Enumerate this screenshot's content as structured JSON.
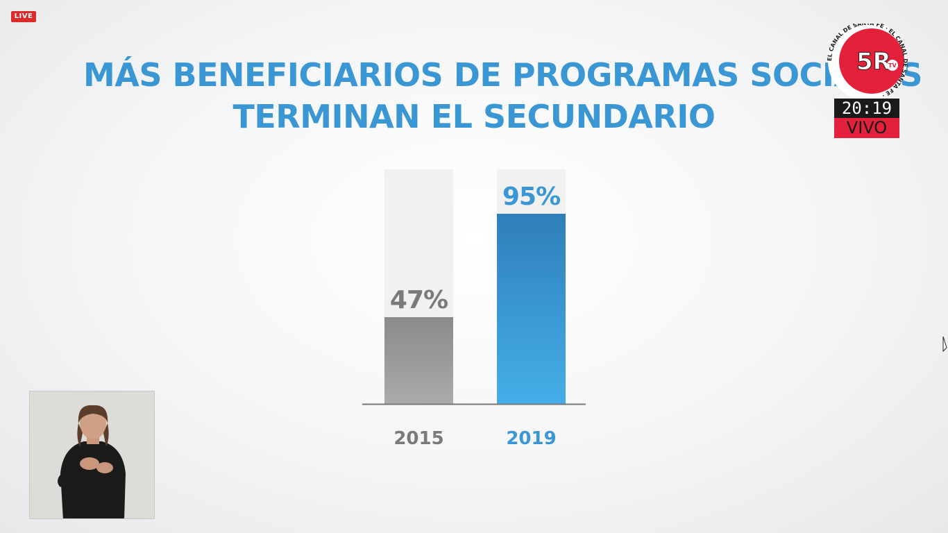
{
  "badge": {
    "live_label": "LIVE"
  },
  "title": {
    "line1": "MÁS BENEFICIARIOS DE PROGRAMAS SOCIALES",
    "line2": "TERMINAN EL SECUNDARIO"
  },
  "logo": {
    "brand": "5R",
    "sub": "TV",
    "ring_text": "EL CANAL DE SANTA FE · EL CANAL DE SANTA FE ·"
  },
  "clock": {
    "time": "20:19",
    "status": "VIVO"
  },
  "chart_data": {
    "type": "bar",
    "categories": [
      "2015",
      "2019"
    ],
    "values": [
      47,
      95
    ],
    "value_labels": [
      "47%",
      "95%"
    ],
    "ylim": [
      0,
      100
    ],
    "grid": false,
    "legend": "none"
  },
  "colors": {
    "title": "#3b97d3",
    "bar_2015": "#9b9b9b",
    "bar_2019": "#3a99d6",
    "label_2015": "#7a7a7a",
    "label_2019": "#3b97d3",
    "track": "#f1f1f1",
    "logo_red": "#e3213a"
  }
}
